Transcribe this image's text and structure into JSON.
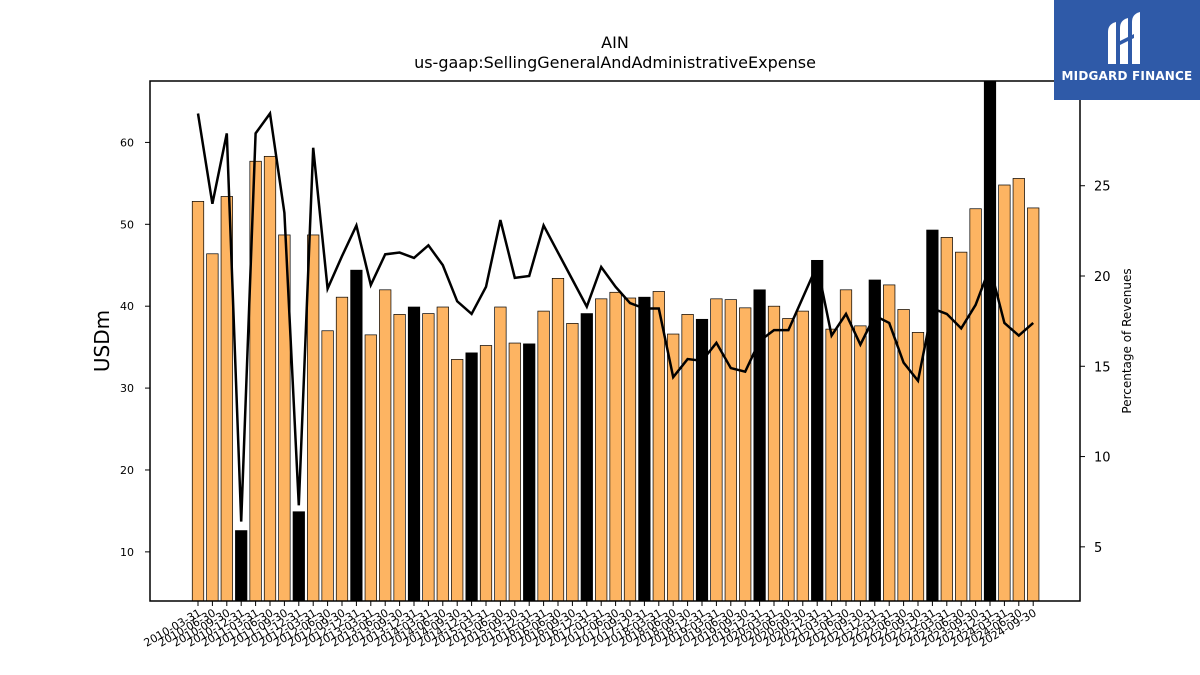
{
  "logo": {
    "text": "MIDGARD FINANCE",
    "icon": "midgard-logo-icon"
  },
  "chart_data": {
    "type": "bar",
    "title": "AIN",
    "subtitle": "us-gaap:SellingGeneralAndAdministrativeExpense",
    "ylabel": "USDm",
    "y2label": "Percentage of Revenues",
    "ylim": [
      4,
      67.5
    ],
    "y2lim": [
      2,
      30.8
    ],
    "yticks": [
      10,
      20,
      30,
      40,
      50,
      60
    ],
    "y2ticks": [
      5,
      10,
      15,
      20,
      25
    ],
    "colors": {
      "bar": "#fdb462",
      "bar_q4": "#000000",
      "line": "#000000",
      "edge": "#000000"
    },
    "categories": [
      "2010-03-31",
      "2010-06-30",
      "2010-09-30",
      "2010-12-31",
      "2011-03-31",
      "2011-06-30",
      "2011-09-30",
      "2011-12-31",
      "2012-03-31",
      "2012-06-30",
      "2012-09-30",
      "2012-12-31",
      "2013-03-31",
      "2013-06-30",
      "2013-09-30",
      "2013-12-31",
      "2014-03-31",
      "2014-06-30",
      "2014-09-30",
      "2014-12-31",
      "2015-03-31",
      "2015-06-30",
      "2015-09-30",
      "2015-12-31",
      "2016-03-31",
      "2016-06-30",
      "2016-09-30",
      "2016-12-31",
      "2017-03-31",
      "2017-06-30",
      "2017-09-30",
      "2017-12-31",
      "2018-03-31",
      "2018-06-30",
      "2018-09-30",
      "2018-12-31",
      "2019-03-31",
      "2019-06-30",
      "2019-09-30",
      "2019-12-31",
      "2020-03-31",
      "2020-06-30",
      "2020-09-30",
      "2020-12-31",
      "2021-03-31",
      "2021-06-30",
      "2021-09-30",
      "2021-12-31",
      "2022-03-31",
      "2022-06-30",
      "2022-09-30",
      "2022-12-31",
      "2023-03-31",
      "2023-06-30",
      "2023-09-30",
      "2023-12-31",
      "2024-03-31",
      "2024-06-30",
      "2024-09-30"
    ],
    "series": [
      {
        "type": "bar",
        "values": [
          52.8,
          46.4,
          53.4,
          12.6,
          57.7,
          58.3,
          48.7,
          14.9,
          48.7,
          37.0,
          41.1,
          44.4,
          36.5,
          42.0,
          39.0,
          39.9,
          39.1,
          39.9,
          33.5,
          34.3,
          35.2,
          39.9,
          35.5,
          35.4,
          39.4,
          43.4,
          37.9,
          39.1,
          40.9,
          41.7,
          41.0,
          41.1,
          41.8,
          36.6,
          39.0,
          38.4,
          40.9,
          40.8,
          39.8,
          42.0,
          40.0,
          38.5,
          39.4,
          45.6,
          37.2,
          42.0,
          37.6,
          43.2,
          42.6,
          39.6,
          36.8,
          49.3,
          48.4,
          46.6,
          51.9,
          67.5,
          54.8,
          55.6,
          52.0
        ],
        "q4_black": [
          false,
          false,
          false,
          true,
          false,
          false,
          false,
          true,
          false,
          false,
          false,
          true,
          false,
          false,
          false,
          true,
          false,
          false,
          false,
          true,
          false,
          false,
          false,
          true,
          false,
          false,
          false,
          true,
          false,
          false,
          false,
          true,
          false,
          false,
          false,
          true,
          false,
          false,
          false,
          true,
          false,
          false,
          false,
          true,
          false,
          false,
          false,
          true,
          false,
          false,
          false,
          true,
          false,
          false,
          false,
          true,
          false,
          false,
          false
        ]
      },
      {
        "type": "line",
        "axis": "right",
        "values": [
          29.0,
          24.0,
          27.9,
          6.4,
          27.9,
          29.0,
          23.5,
          7.3,
          27.1,
          19.3,
          21.1,
          22.8,
          19.5,
          21.2,
          21.3,
          21.0,
          21.7,
          20.6,
          18.6,
          17.9,
          19.4,
          23.1,
          19.9,
          20.0,
          22.8,
          21.3,
          19.8,
          18.3,
          20.5,
          19.4,
          18.5,
          18.2,
          18.2,
          14.4,
          15.4,
          15.3,
          16.3,
          14.9,
          14.7,
          16.4,
          17.0,
          17.0,
          18.8,
          20.6,
          16.7,
          17.9,
          16.2,
          17.8,
          17.4,
          15.2,
          14.2,
          18.2,
          17.9,
          17.1,
          18.4,
          20.5,
          17.4,
          16.7,
          17.4
        ]
      }
    ]
  }
}
